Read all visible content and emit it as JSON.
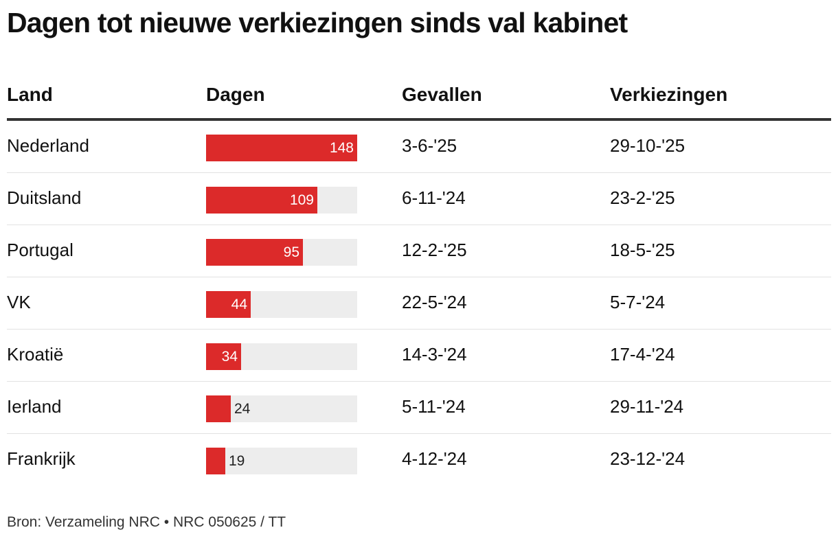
{
  "title": "Dagen tot nieuwe verkiezingen sinds val kabinet",
  "headers": {
    "land": "Land",
    "dagen": "Dagen",
    "gevallen": "Gevallen",
    "verkiezingen": "Verkiezingen"
  },
  "colors": {
    "bar": "#dc2a2a",
    "track": "#ededed",
    "header_rule": "#333333",
    "row_rule": "#e2e2e2"
  },
  "source": "Bron: Verzameling NRC  •  NRC 050625 / TT",
  "chart_data": {
    "type": "table",
    "max_value": 148,
    "columns": [
      "Land",
      "Dagen",
      "Gevallen",
      "Verkiezingen"
    ],
    "rows": [
      {
        "land": "Nederland",
        "dagen": 148,
        "gevallen": "3-6-'25",
        "verkiezingen": "29-10-'25"
      },
      {
        "land": "Duitsland",
        "dagen": 109,
        "gevallen": "6-11-'24",
        "verkiezingen": "23-2-'25"
      },
      {
        "land": "Portugal",
        "dagen": 95,
        "gevallen": "12-2-'25",
        "verkiezingen": "18-5-'25"
      },
      {
        "land": "VK",
        "dagen": 44,
        "gevallen": "22-5-'24",
        "verkiezingen": "5-7-'24"
      },
      {
        "land": "Kroatië",
        "dagen": 34,
        "gevallen": "14-3-'24",
        "verkiezingen": "17-4-'24"
      },
      {
        "land": "Ierland",
        "dagen": 24,
        "gevallen": "5-11-'24",
        "verkiezingen": "29-11-'24"
      },
      {
        "land": "Frankrijk",
        "dagen": 19,
        "gevallen": "4-12-'24",
        "verkiezingen": "23-12-'24"
      }
    ]
  }
}
